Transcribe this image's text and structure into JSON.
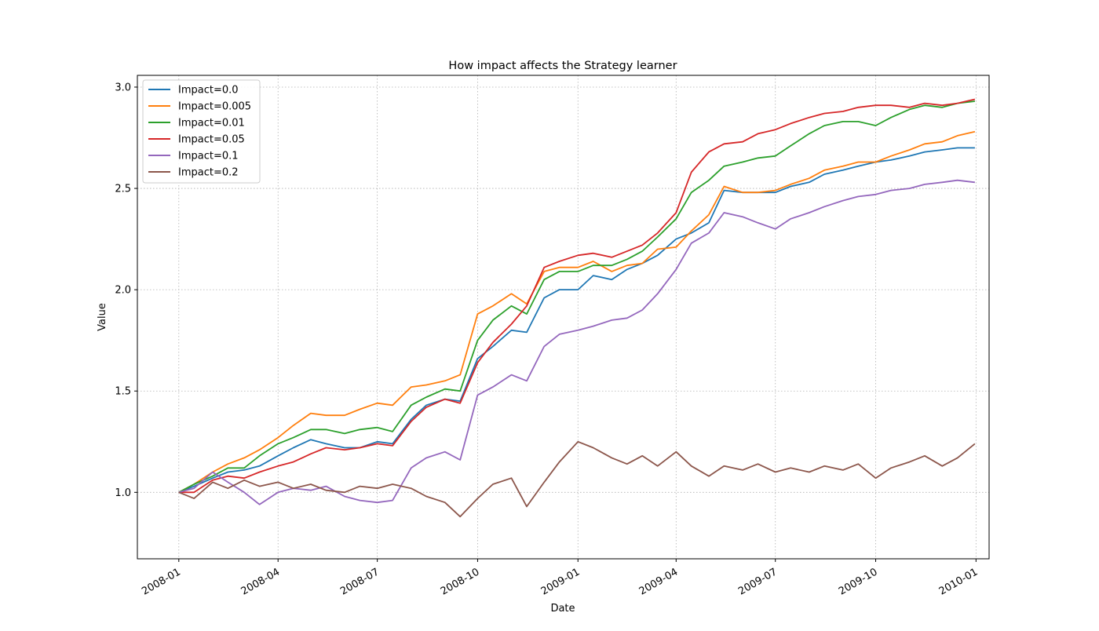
{
  "chart_data": {
    "type": "line",
    "title": "How impact affects the Strategy learner",
    "xlabel": "Date",
    "ylabel": "Value",
    "xlim": [
      "2007-11-24",
      "2010-01-13"
    ],
    "ylim": [
      0.672,
      3.058
    ],
    "x_ticks": [
      "2008-01",
      "2008-04",
      "2008-07",
      "2008-10",
      "2009-01",
      "2009-04",
      "2009-07",
      "2009-10",
      "2010-01"
    ],
    "y_ticks": [
      1.0,
      1.5,
      2.0,
      2.5,
      3.0
    ],
    "y_tick_labels": [
      "1.0",
      "1.5",
      "2.0",
      "2.5",
      "3.0"
    ],
    "grid": true,
    "legend_position": "top-left",
    "series": [
      {
        "name": "Impact=0.0",
        "color": "#1f77b4",
        "x": [
          "2008-01-01",
          "2008-01-15",
          "2008-02-01",
          "2008-02-15",
          "2008-03-01",
          "2008-03-15",
          "2008-04-01",
          "2008-04-15",
          "2008-05-01",
          "2008-05-15",
          "2008-06-01",
          "2008-06-15",
          "2008-07-01",
          "2008-07-15",
          "2008-08-01",
          "2008-08-15",
          "2008-09-01",
          "2008-09-15",
          "2008-10-01",
          "2008-10-15",
          "2008-11-01",
          "2008-11-15",
          "2008-12-01",
          "2008-12-15",
          "2009-01-01",
          "2009-01-15",
          "2009-02-01",
          "2009-02-15",
          "2009-03-01",
          "2009-03-15",
          "2009-04-01",
          "2009-04-15",
          "2009-05-01",
          "2009-05-15",
          "2009-06-01",
          "2009-06-15",
          "2009-07-01",
          "2009-07-15",
          "2009-08-01",
          "2009-08-15",
          "2009-09-01",
          "2009-09-15",
          "2009-10-01",
          "2009-10-15",
          "2009-11-01",
          "2009-11-15",
          "2009-12-01",
          "2009-12-15",
          "2009-12-31"
        ],
        "y": [
          1.0,
          1.03,
          1.07,
          1.1,
          1.11,
          1.13,
          1.18,
          1.22,
          1.26,
          1.24,
          1.22,
          1.22,
          1.25,
          1.24,
          1.36,
          1.43,
          1.46,
          1.45,
          1.66,
          1.72,
          1.8,
          1.79,
          1.96,
          2.0,
          2.0,
          2.07,
          2.05,
          2.1,
          2.13,
          2.17,
          2.25,
          2.28,
          2.33,
          2.49,
          2.48,
          2.48,
          2.48,
          2.51,
          2.53,
          2.57,
          2.59,
          2.61,
          2.63,
          2.64,
          2.66,
          2.68,
          2.69,
          2.7,
          2.7
        ]
      },
      {
        "name": "Impact=0.005",
        "color": "#ff7f0e",
        "x": [
          "2008-01-01",
          "2008-01-15",
          "2008-02-01",
          "2008-02-15",
          "2008-03-01",
          "2008-03-15",
          "2008-04-01",
          "2008-04-15",
          "2008-05-01",
          "2008-05-15",
          "2008-06-01",
          "2008-06-15",
          "2008-07-01",
          "2008-07-15",
          "2008-08-01",
          "2008-08-15",
          "2008-09-01",
          "2008-09-15",
          "2008-10-01",
          "2008-10-15",
          "2008-11-01",
          "2008-11-15",
          "2008-12-01",
          "2008-12-15",
          "2009-01-01",
          "2009-01-15",
          "2009-02-01",
          "2009-02-15",
          "2009-03-01",
          "2009-03-15",
          "2009-04-01",
          "2009-04-15",
          "2009-05-01",
          "2009-05-15",
          "2009-06-01",
          "2009-06-15",
          "2009-07-01",
          "2009-07-15",
          "2009-08-01",
          "2009-08-15",
          "2009-09-01",
          "2009-09-15",
          "2009-10-01",
          "2009-10-15",
          "2009-11-01",
          "2009-11-15",
          "2009-12-01",
          "2009-12-15",
          "2009-12-31"
        ],
        "y": [
          1.0,
          1.04,
          1.1,
          1.14,
          1.17,
          1.21,
          1.27,
          1.33,
          1.39,
          1.38,
          1.38,
          1.41,
          1.44,
          1.43,
          1.52,
          1.53,
          1.55,
          1.58,
          1.88,
          1.92,
          1.98,
          1.93,
          2.09,
          2.11,
          2.11,
          2.14,
          2.09,
          2.12,
          2.13,
          2.2,
          2.21,
          2.29,
          2.37,
          2.51,
          2.48,
          2.48,
          2.49,
          2.52,
          2.55,
          2.59,
          2.61,
          2.63,
          2.63,
          2.66,
          2.69,
          2.72,
          2.73,
          2.76,
          2.78
        ]
      },
      {
        "name": "Impact=0.01",
        "color": "#2ca02c",
        "x": [
          "2008-01-01",
          "2008-01-15",
          "2008-02-01",
          "2008-02-15",
          "2008-03-01",
          "2008-03-15",
          "2008-04-01",
          "2008-04-15",
          "2008-05-01",
          "2008-05-15",
          "2008-06-01",
          "2008-06-15",
          "2008-07-01",
          "2008-07-15",
          "2008-08-01",
          "2008-08-15",
          "2008-09-01",
          "2008-09-15",
          "2008-10-01",
          "2008-10-15",
          "2008-11-01",
          "2008-11-15",
          "2008-12-01",
          "2008-12-15",
          "2009-01-01",
          "2009-01-15",
          "2009-02-01",
          "2009-02-15",
          "2009-03-01",
          "2009-03-15",
          "2009-04-01",
          "2009-04-15",
          "2009-05-01",
          "2009-05-15",
          "2009-06-01",
          "2009-06-15",
          "2009-07-01",
          "2009-07-15",
          "2009-08-01",
          "2009-08-15",
          "2009-09-01",
          "2009-09-15",
          "2009-10-01",
          "2009-10-15",
          "2009-11-01",
          "2009-11-15",
          "2009-12-01",
          "2009-12-15",
          "2009-12-31"
        ],
        "y": [
          1.0,
          1.04,
          1.08,
          1.12,
          1.12,
          1.18,
          1.24,
          1.27,
          1.31,
          1.31,
          1.29,
          1.31,
          1.32,
          1.3,
          1.43,
          1.47,
          1.51,
          1.5,
          1.75,
          1.85,
          1.92,
          1.88,
          2.05,
          2.09,
          2.09,
          2.12,
          2.12,
          2.15,
          2.19,
          2.26,
          2.35,
          2.48,
          2.54,
          2.61,
          2.63,
          2.65,
          2.66,
          2.71,
          2.77,
          2.81,
          2.83,
          2.83,
          2.81,
          2.85,
          2.89,
          2.91,
          2.9,
          2.92,
          2.93
        ]
      },
      {
        "name": "Impact=0.05",
        "color": "#d62728",
        "x": [
          "2008-01-01",
          "2008-01-15",
          "2008-02-01",
          "2008-02-15",
          "2008-03-01",
          "2008-03-15",
          "2008-04-01",
          "2008-04-15",
          "2008-05-01",
          "2008-05-15",
          "2008-06-01",
          "2008-06-15",
          "2008-07-01",
          "2008-07-15",
          "2008-08-01",
          "2008-08-15",
          "2008-09-01",
          "2008-09-15",
          "2008-10-01",
          "2008-10-15",
          "2008-11-01",
          "2008-11-15",
          "2008-12-01",
          "2008-12-15",
          "2009-01-01",
          "2009-01-15",
          "2009-02-01",
          "2009-02-15",
          "2009-03-01",
          "2009-03-15",
          "2009-04-01",
          "2009-04-15",
          "2009-05-01",
          "2009-05-15",
          "2009-06-01",
          "2009-06-15",
          "2009-07-01",
          "2009-07-15",
          "2009-08-01",
          "2009-08-15",
          "2009-09-01",
          "2009-09-15",
          "2009-10-01",
          "2009-10-15",
          "2009-11-01",
          "2009-11-15",
          "2009-12-01",
          "2009-12-15",
          "2009-12-31"
        ],
        "y": [
          1.0,
          1.0,
          1.06,
          1.08,
          1.07,
          1.1,
          1.13,
          1.15,
          1.19,
          1.22,
          1.21,
          1.22,
          1.24,
          1.23,
          1.35,
          1.42,
          1.46,
          1.44,
          1.64,
          1.74,
          1.83,
          1.92,
          2.11,
          2.14,
          2.17,
          2.18,
          2.16,
          2.19,
          2.22,
          2.28,
          2.38,
          2.58,
          2.68,
          2.72,
          2.73,
          2.77,
          2.79,
          2.82,
          2.85,
          2.87,
          2.88,
          2.9,
          2.91,
          2.91,
          2.9,
          2.92,
          2.91,
          2.92,
          2.94
        ]
      },
      {
        "name": "Impact=0.1",
        "color": "#9467bd",
        "x": [
          "2008-01-01",
          "2008-01-15",
          "2008-02-01",
          "2008-02-15",
          "2008-03-01",
          "2008-03-15",
          "2008-04-01",
          "2008-04-15",
          "2008-05-01",
          "2008-05-15",
          "2008-06-01",
          "2008-06-15",
          "2008-07-01",
          "2008-07-15",
          "2008-08-01",
          "2008-08-15",
          "2008-09-01",
          "2008-09-15",
          "2008-10-01",
          "2008-10-15",
          "2008-11-01",
          "2008-11-15",
          "2008-12-01",
          "2008-12-15",
          "2009-01-01",
          "2009-01-15",
          "2009-02-01",
          "2009-02-15",
          "2009-03-01",
          "2009-03-15",
          "2009-04-01",
          "2009-04-15",
          "2009-05-01",
          "2009-05-15",
          "2009-06-01",
          "2009-06-15",
          "2009-07-01",
          "2009-07-15",
          "2009-08-01",
          "2009-08-15",
          "2009-09-01",
          "2009-09-15",
          "2009-10-01",
          "2009-10-15",
          "2009-11-01",
          "2009-11-15",
          "2009-12-01",
          "2009-12-15",
          "2009-12-31"
        ],
        "y": [
          1.0,
          1.02,
          1.1,
          1.05,
          1.0,
          0.94,
          1.0,
          1.02,
          1.01,
          1.03,
          0.98,
          0.96,
          0.95,
          0.96,
          1.12,
          1.17,
          1.2,
          1.16,
          1.48,
          1.52,
          1.58,
          1.55,
          1.72,
          1.78,
          1.8,
          1.82,
          1.85,
          1.86,
          1.9,
          1.98,
          2.1,
          2.23,
          2.28,
          2.38,
          2.36,
          2.33,
          2.3,
          2.35,
          2.38,
          2.41,
          2.44,
          2.46,
          2.47,
          2.49,
          2.5,
          2.52,
          2.53,
          2.54,
          2.53
        ]
      },
      {
        "name": "Impact=0.2",
        "color": "#8c564b",
        "x": [
          "2008-01-01",
          "2008-01-15",
          "2008-02-01",
          "2008-02-15",
          "2008-03-01",
          "2008-03-15",
          "2008-04-01",
          "2008-04-15",
          "2008-05-01",
          "2008-05-15",
          "2008-06-01",
          "2008-06-15",
          "2008-07-01",
          "2008-07-15",
          "2008-08-01",
          "2008-08-15",
          "2008-09-01",
          "2008-09-15",
          "2008-10-01",
          "2008-10-15",
          "2008-11-01",
          "2008-11-15",
          "2008-12-01",
          "2008-12-15",
          "2009-01-01",
          "2009-01-15",
          "2009-02-01",
          "2009-02-15",
          "2009-03-01",
          "2009-03-15",
          "2009-04-01",
          "2009-04-15",
          "2009-05-01",
          "2009-05-15",
          "2009-06-01",
          "2009-06-15",
          "2009-07-01",
          "2009-07-15",
          "2009-08-01",
          "2009-08-15",
          "2009-09-01",
          "2009-09-15",
          "2009-10-01",
          "2009-10-15",
          "2009-11-01",
          "2009-11-15",
          "2009-12-01",
          "2009-12-15",
          "2009-12-31"
        ],
        "y": [
          1.0,
          0.97,
          1.05,
          1.02,
          1.06,
          1.03,
          1.05,
          1.02,
          1.04,
          1.01,
          1.0,
          1.03,
          1.02,
          1.04,
          1.02,
          0.98,
          0.95,
          0.88,
          0.97,
          1.04,
          1.07,
          0.93,
          1.05,
          1.15,
          1.25,
          1.22,
          1.17,
          1.14,
          1.18,
          1.13,
          1.2,
          1.13,
          1.08,
          1.13,
          1.11,
          1.14,
          1.1,
          1.12,
          1.1,
          1.13,
          1.11,
          1.14,
          1.07,
          1.12,
          1.15,
          1.18,
          1.13,
          1.17,
          1.24
        ]
      }
    ]
  }
}
